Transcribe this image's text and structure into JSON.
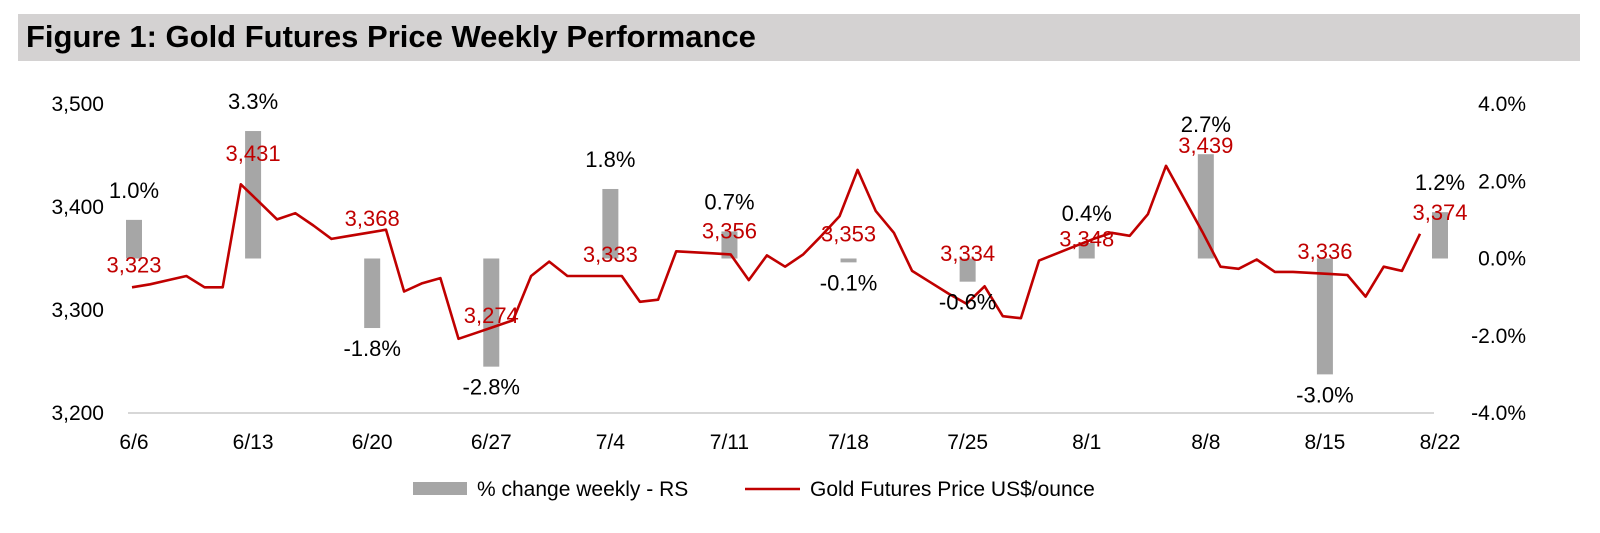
{
  "title": "Figure 1: Gold Futures Price Weekly Performance",
  "chart_data": {
    "type": "bar+line",
    "colors": {
      "bar": "#a6a6a6",
      "line": "#c00000",
      "price_label": "#c00000",
      "pct_label": "#000000"
    },
    "left_axis": {
      "ylim": [
        3200,
        3500
      ],
      "ticks": [
        "3,200",
        "3,300",
        "3,400",
        "3,500"
      ]
    },
    "right_axis": {
      "ylim": [
        -4.0,
        4.0
      ],
      "ticks": [
        "-4.0%",
        "-2.0%",
        "0.0%",
        "2.0%",
        "4.0%"
      ]
    },
    "week_labels": [
      "6/6",
      "6/13",
      "6/20",
      "6/27",
      "7/4",
      "7/11",
      "7/18",
      "7/25",
      "8/1",
      "8/8",
      "8/15",
      "8/22"
    ],
    "weekly_pct_change": [
      1.0,
      3.3,
      -1.8,
      -2.8,
      1.8,
      0.7,
      -0.1,
      -0.6,
      0.4,
      2.7,
      -3.0,
      1.2
    ],
    "weekly_pct_labels": [
      "1.0%",
      "3.3%",
      "-1.8%",
      "-2.8%",
      "1.8%",
      "0.7%",
      "-0.1%",
      "-0.6%",
      "0.4%",
      "2.7%",
      "-3.0%",
      "1.2%"
    ],
    "weekly_close": [
      3323,
      3431,
      3368,
      3274,
      3333,
      3356,
      3353,
      3334,
      3348,
      3439,
      3336,
      3374
    ],
    "weekly_close_labels": [
      "3,323",
      "3,431",
      "3,368",
      "3,274",
      "3,333",
      "3,356",
      "3,353",
      "3,334",
      "3,348",
      "3,439",
      "3,336",
      "3,374"
    ],
    "daily_price": [
      3322,
      3325,
      3329,
      3333,
      3322,
      3322,
      3422,
      3405,
      3388,
      3394,
      3382,
      3369,
      3372,
      3375,
      3378,
      3318,
      3326,
      3331,
      3272,
      3278,
      3284,
      3290,
      3333,
      3347,
      3333,
      3333,
      3333,
      3333,
      3308,
      3310,
      3357,
      3356,
      3355,
      3354,
      3329,
      3353,
      3342,
      3354,
      3372,
      3391,
      3436,
      3396,
      3375,
      3338,
      3327,
      3316,
      3306,
      3323,
      3294,
      3292,
      3348,
      3355,
      3362,
      3369,
      3375,
      3372,
      3393,
      3440,
      3408,
      3376,
      3342,
      3340,
      3349,
      3337,
      3337,
      3336,
      3335,
      3334,
      3313,
      3342,
      3338,
      3374
    ],
    "legend": [
      "% change weekly - RS",
      "Gold Futures Price US$/ounce"
    ]
  }
}
